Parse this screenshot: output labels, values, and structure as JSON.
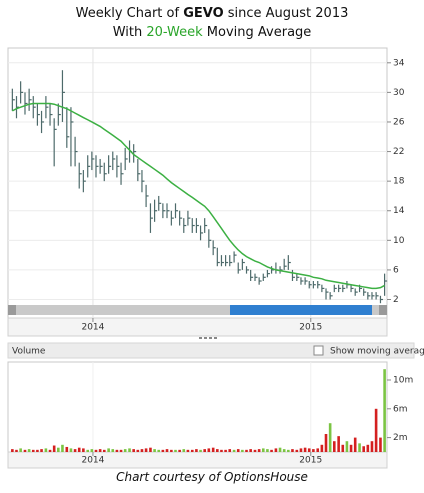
{
  "chart_data": [
    {
      "type": "stock",
      "title": [
        "Weekly Chart of ",
        "GEVO",
        " since August 2013"
      ],
      "subtitle": [
        "With ",
        "20-Week",
        " Moving Average"
      ],
      "xlim": [
        2013.61,
        2015.35
      ],
      "xticks": [
        2014,
        2015
      ],
      "ylim": [
        -0.5,
        36
      ],
      "yticks": [
        2,
        6,
        10,
        14,
        18,
        22,
        26,
        30,
        34
      ],
      "grid": true,
      "x": [
        2013.63,
        2013.649,
        2013.668,
        2013.688,
        2013.707,
        2013.726,
        2013.745,
        2013.764,
        2013.784,
        2013.803,
        2013.822,
        2013.841,
        2013.86,
        2013.88,
        2013.899,
        2013.918,
        2013.937,
        2013.956,
        2013.976,
        2013.995,
        2014.014,
        2014.033,
        2014.052,
        2014.072,
        2014.091,
        2014.11,
        2014.129,
        2014.148,
        2014.168,
        2014.187,
        2014.206,
        2014.225,
        2014.244,
        2014.264,
        2014.283,
        2014.302,
        2014.321,
        2014.34,
        2014.36,
        2014.379,
        2014.398,
        2014.417,
        2014.436,
        2014.456,
        2014.475,
        2014.494,
        2014.513,
        2014.532,
        2014.552,
        2014.571,
        2014.59,
        2014.609,
        2014.628,
        2014.648,
        2014.667,
        2014.686,
        2014.705,
        2014.724,
        2014.744,
        2014.763,
        2014.782,
        2014.801,
        2014.82,
        2014.84,
        2014.859,
        2014.878,
        2014.897,
        2014.916,
        2014.936,
        2014.955,
        2014.974,
        2014.993,
        2015.012,
        2015.032,
        2015.051,
        2015.07,
        2015.089,
        2015.108,
        2015.128,
        2015.147,
        2015.166,
        2015.185,
        2015.204,
        2015.224,
        2015.243,
        2015.262,
        2015.281,
        2015.3,
        2015.32,
        2015.339
      ],
      "series": [
        {
          "type": "hlc",
          "color": "#4d6a6a",
          "high": [
            30.5,
            29.5,
            31.5,
            30,
            30.5,
            29.5,
            28.5,
            27.5,
            29.5,
            28.5,
            26.5,
            28.5,
            33,
            28,
            28,
            24,
            20.5,
            19.5,
            21.5,
            22,
            21.5,
            21,
            20.5,
            21.5,
            22,
            21.5,
            20.5,
            22.5,
            23.5,
            23,
            21,
            19.5,
            17.5,
            15,
            15.5,
            16,
            15,
            15,
            14,
            15,
            14,
            13,
            14,
            13,
            13,
            12,
            13,
            11.5,
            10,
            9,
            8,
            8,
            8,
            8.5,
            7,
            7.5,
            6.5,
            6,
            5.5,
            5,
            5.5,
            6,
            6.5,
            7,
            6.5,
            7.5,
            8,
            6,
            5.5,
            5,
            5,
            4.5,
            4.5,
            4.5,
            4,
            3.5,
            3,
            4,
            4,
            4,
            4.5,
            4,
            3.5,
            4,
            3.5,
            3,
            3,
            3,
            2.5,
            5.5
          ],
          "low": [
            27.5,
            26.5,
            28.5,
            27,
            27.5,
            26.5,
            25.5,
            24.5,
            26.5,
            25.5,
            20,
            25.5,
            26,
            22.5,
            20,
            20,
            17,
            16.5,
            18.5,
            19.5,
            18.5,
            19,
            18,
            19,
            19.5,
            18.5,
            17.5,
            19.5,
            20.5,
            20.5,
            18,
            16.5,
            14.5,
            11,
            12.5,
            14,
            13,
            13,
            12,
            13,
            12,
            11,
            12,
            11,
            11,
            10,
            11,
            9,
            8,
            6.5,
            6.5,
            6.5,
            6.5,
            7,
            5.5,
            6,
            5.5,
            4.5,
            4.5,
            4,
            4.5,
            5,
            5.5,
            5.5,
            5.5,
            6,
            6,
            4.5,
            4.5,
            4,
            4,
            3.5,
            3.5,
            3.5,
            3,
            2,
            2,
            3,
            3,
            3,
            3.5,
            3,
            2.5,
            3,
            2.5,
            2,
            2,
            2,
            1.5,
            2.5
          ],
          "close": [
            29,
            28,
            30,
            28.5,
            29,
            28,
            27,
            26,
            28,
            27,
            25,
            27,
            30,
            24,
            26,
            22,
            19,
            18,
            20,
            21,
            20,
            20,
            19,
            20,
            21,
            20,
            19,
            21,
            22,
            22,
            19,
            18,
            16,
            13,
            14,
            15,
            14,
            14,
            13,
            14,
            13,
            12,
            13,
            12,
            12,
            11,
            12,
            10,
            9,
            7,
            7,
            7,
            7,
            8,
            6,
            7,
            6,
            5,
            5,
            4.5,
            5,
            5.5,
            6,
            6,
            6,
            6.5,
            7,
            5,
            5,
            4.5,
            4.5,
            4,
            4,
            4,
            3.5,
            3,
            2.5,
            3.5,
            3.5,
            3.5,
            4,
            3.5,
            3,
            3.5,
            3,
            2.5,
            2.5,
            2.5,
            2,
            4.5
          ]
        },
        {
          "type": "line",
          "color": "#3cb043",
          "values": [
            27.5,
            27.8,
            28,
            28.2,
            28.4,
            28.5,
            28.5,
            28.5,
            28.5,
            28.5,
            28.4,
            28.2,
            28,
            27.8,
            27.5,
            27.2,
            26.9,
            26.6,
            26.3,
            26,
            25.7,
            25.4,
            25,
            24.6,
            24.2,
            23.8,
            23.4,
            22.8,
            22.2,
            21.6,
            21.2,
            20.8,
            20.4,
            20,
            19.6,
            19.2,
            18.8,
            18.3,
            17.8,
            17.4,
            17,
            16.6,
            16.2,
            15.8,
            15.4,
            15,
            14.6,
            14,
            13.2,
            12.4,
            11.6,
            10.8,
            10,
            9.3,
            8.7,
            8.2,
            7.8,
            7.5,
            7.2,
            7,
            6.7,
            6.4,
            6.2,
            6,
            5.9,
            5.8,
            5.7,
            5.6,
            5.5,
            5.4,
            5.3,
            5.2,
            5,
            4.9,
            4.8,
            4.6,
            4.5,
            4.4,
            4.3,
            4.2,
            4.1,
            4,
            3.9,
            3.8,
            3.7,
            3.6,
            3.5,
            3.5,
            3.6,
            3.9
          ]
        }
      ]
    },
    {
      "type": "bar",
      "title": "Volume",
      "toggle_label": "Show moving average",
      "caption": "Chart courtesy of OptionsHouse",
      "xlim": [
        2013.61,
        2015.35
      ],
      "xticks": [
        2014,
        2015
      ],
      "ylim": [
        0,
        12.5
      ],
      "yticks": [
        {
          "value": 2,
          "label": "2m"
        },
        {
          "value": 6,
          "label": "6m"
        },
        {
          "value": 10,
          "label": "10m"
        }
      ],
      "x": [
        2013.63,
        2013.649,
        2013.668,
        2013.688,
        2013.707,
        2013.726,
        2013.745,
        2013.764,
        2013.784,
        2013.803,
        2013.822,
        2013.841,
        2013.86,
        2013.88,
        2013.899,
        2013.918,
        2013.937,
        2013.956,
        2013.976,
        2013.995,
        2014.014,
        2014.033,
        2014.052,
        2014.072,
        2014.091,
        2014.11,
        2014.129,
        2014.148,
        2014.168,
        2014.187,
        2014.206,
        2014.225,
        2014.244,
        2014.264,
        2014.283,
        2014.302,
        2014.321,
        2014.34,
        2014.36,
        2014.379,
        2014.398,
        2014.417,
        2014.436,
        2014.456,
        2014.475,
        2014.494,
        2014.513,
        2014.532,
        2014.552,
        2014.571,
        2014.59,
        2014.609,
        2014.628,
        2014.648,
        2014.667,
        2014.686,
        2014.705,
        2014.724,
        2014.744,
        2014.763,
        2014.782,
        2014.801,
        2014.82,
        2014.84,
        2014.859,
        2014.878,
        2014.897,
        2014.916,
        2014.936,
        2014.955,
        2014.974,
        2014.993,
        2015.012,
        2015.032,
        2015.051,
        2015.07,
        2015.089,
        2015.108,
        2015.128,
        2015.147,
        2015.166,
        2015.185,
        2015.204,
        2015.224,
        2015.243,
        2015.262,
        2015.281,
        2015.3,
        2015.32,
        2015.339
      ],
      "values": [
        0.4,
        0.3,
        0.5,
        0.3,
        0.4,
        0.3,
        0.3,
        0.4,
        0.5,
        0.3,
        0.9,
        0.6,
        1.0,
        0.7,
        0.5,
        0.4,
        0.6,
        0.5,
        0.3,
        0.4,
        0.3,
        0.4,
        0.3,
        0.5,
        0.4,
        0.3,
        0.3,
        0.4,
        0.5,
        0.4,
        0.3,
        0.4,
        0.5,
        0.6,
        0.4,
        0.3,
        0.3,
        0.4,
        0.3,
        0.3,
        0.3,
        0.4,
        0.3,
        0.3,
        0.4,
        0.3,
        0.4,
        0.5,
        0.6,
        0.4,
        0.3,
        0.3,
        0.4,
        0.3,
        0.4,
        0.3,
        0.3,
        0.4,
        0.3,
        0.4,
        0.5,
        0.4,
        0.3,
        0.5,
        0.6,
        0.4,
        0.3,
        0.4,
        0.3,
        0.5,
        0.6,
        0.5,
        0.4,
        0.5,
        1.0,
        2.5,
        4.0,
        1.5,
        2.2,
        1.0,
        1.5,
        1.0,
        2.0,
        1.2,
        0.8,
        1.0,
        1.5,
        6.0,
        2.0,
        11.5
      ],
      "colors": [
        "#d42020",
        "#d42020",
        "#7bc443",
        "#d42020",
        "#7bc443",
        "#d42020",
        "#d42020",
        "#d42020",
        "#7bc443",
        "#d42020",
        "#d42020",
        "#7bc443",
        "#7bc443",
        "#d42020",
        "#7bc443",
        "#d42020",
        "#d42020",
        "#d42020",
        "#7bc443",
        "#7bc443",
        "#d42020",
        "#d42020",
        "#d42020",
        "#7bc443",
        "#7bc443",
        "#d42020",
        "#d42020",
        "#7bc443",
        "#7bc443",
        "#d42020",
        "#d42020",
        "#d42020",
        "#d42020",
        "#d42020",
        "#7bc443",
        "#7bc443",
        "#d42020",
        "#d42020",
        "#d42020",
        "#7bc443",
        "#d42020",
        "#7bc443",
        "#d42020",
        "#d42020",
        "#d42020",
        "#7bc443",
        "#d42020",
        "#d42020",
        "#d42020",
        "#d42020",
        "#d42020",
        "#d42020",
        "#d42020",
        "#7bc443",
        "#d42020",
        "#7bc443",
        "#d42020",
        "#d42020",
        "#d42020",
        "#d42020",
        "#7bc443",
        "#7bc443",
        "#d42020",
        "#d42020",
        "#7bc443",
        "#7bc443",
        "#7bc443",
        "#d42020",
        "#d42020",
        "#d42020",
        "#d42020",
        "#d42020",
        "#d42020",
        "#d42020",
        "#d42020",
        "#d42020",
        "#7bc443",
        "#d42020",
        "#d42020",
        "#d42020",
        "#7bc443",
        "#d42020",
        "#d42020",
        "#7bc443",
        "#d42020",
        "#d42020",
        "#d42020",
        "#d42020",
        "#d42020",
        "#7bc443"
      ]
    }
  ]
}
